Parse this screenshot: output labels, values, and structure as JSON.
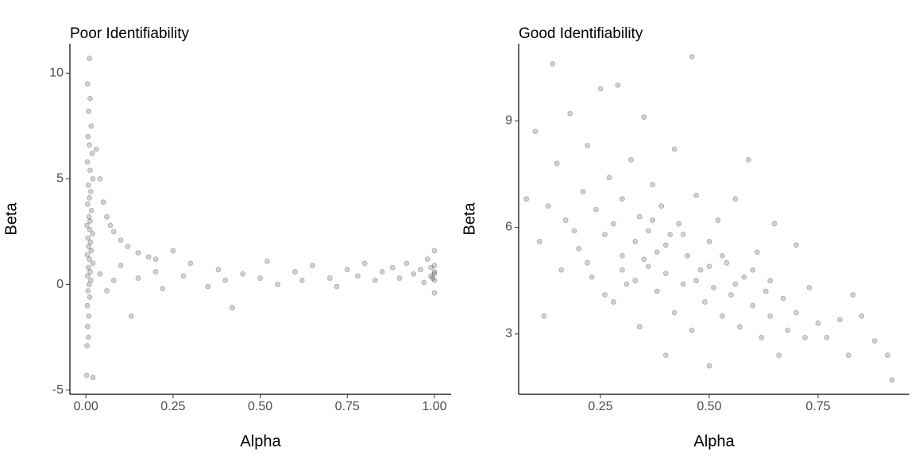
{
  "chart_data": [
    {
      "type": "scatter",
      "title": "Poor Identifiability",
      "x_label": "Alpha",
      "y_label": "Beta",
      "color": "#000000",
      "xlim": [
        -0.046,
        1.048
      ],
      "ylim": [
        -5.2,
        11.4
      ],
      "xticks": [
        {
          "value": 0,
          "label": "0.00"
        },
        {
          "value": 0.25,
          "label": "0.25"
        },
        {
          "value": 0.5,
          "label": "0.50"
        },
        {
          "value": 0.75,
          "label": "0.75"
        },
        {
          "value": 1,
          "label": "1.00"
        }
      ],
      "yticks": [
        -5,
        0,
        5,
        10
      ],
      "x": [
        0.01,
        0.005,
        0.012,
        0.008,
        0.015,
        0.006,
        0.01,
        0.018,
        0.004,
        0.012,
        0.02,
        0.007,
        0.014,
        0.01,
        0.005,
        0.016,
        0.009,
        0.012,
        0.003,
        0.011,
        0.019,
        0.006,
        0.013,
        0.008,
        0.015,
        0.004,
        0.01,
        0.02,
        0.007,
        0.012,
        0.005,
        0.014,
        0.009,
        0.006,
        0.011,
        0.004,
        0.008,
        0.005,
        0.007,
        0.003,
        0.002,
        0.02,
        0.03,
        0.04,
        0.05,
        0.06,
        0.07,
        0.08,
        0.1,
        0.12,
        0.15,
        0.18,
        0.2,
        0.25,
        0.04,
        0.06,
        0.08,
        0.1,
        0.13,
        0.15,
        0.2,
        0.22,
        0.28,
        0.3,
        0.35,
        0.38,
        0.4,
        0.42,
        0.45,
        0.5,
        0.52,
        0.55,
        0.6,
        0.62,
        0.65,
        0.7,
        0.72,
        0.75,
        0.78,
        0.8,
        0.83,
        0.85,
        0.88,
        0.9,
        0.92,
        0.94,
        0.96,
        0.97,
        0.98,
        0.99,
        1,
        1,
        1,
        1,
        1,
        0.99,
        0.995,
        1
      ],
      "values": [
        10.7,
        9.5,
        8.8,
        8.2,
        7.5,
        7,
        6.6,
        6.2,
        5.8,
        5.4,
        5,
        4.7,
        4.4,
        4.1,
        3.8,
        3.5,
        3.2,
        3,
        2.8,
        2.6,
        2.4,
        2.2,
        2,
        1.8,
        1.6,
        1.4,
        1.2,
        1,
        0.8,
        0.6,
        0.4,
        0.2,
        0,
        -0.3,
        -0.6,
        -1,
        -1.5,
        -2,
        -2.5,
        -2.9,
        -4.3,
        -4.4,
        6.4,
        5,
        3.9,
        3.2,
        2.8,
        2.5,
        2.1,
        1.8,
        1.5,
        1.3,
        1.2,
        1.6,
        0.5,
        -0.3,
        0.2,
        0.9,
        -1.5,
        0.3,
        0.6,
        -0.2,
        0.4,
        1,
        -0.1,
        0.7,
        0.2,
        -1.1,
        0.5,
        0.3,
        1.1,
        0,
        0.6,
        0.2,
        0.9,
        0.3,
        -0.1,
        0.7,
        0.4,
        1,
        0.2,
        0.6,
        0.8,
        0.3,
        1,
        0.5,
        0.7,
        0.1,
        1.2,
        0.4,
        0.6,
        0.9,
        0.2,
        -0.4,
        1.6,
        0.8,
        0.3,
        0.5
      ]
    },
    {
      "type": "scatter",
      "title": "Good Identifiability",
      "x_label": "Alpha",
      "y_label": "Beta",
      "color": "#000000",
      "xlim": [
        0.062,
        0.96
      ],
      "ylim": [
        1.3,
        11.17
      ],
      "xticks": [
        {
          "value": 0.25,
          "label": "0.25"
        },
        {
          "value": 0.5,
          "label": "0.50"
        },
        {
          "value": 0.75,
          "label": "0.75"
        }
      ],
      "yticks": [
        3,
        6,
        9
      ],
      "x": [
        0.1,
        0.12,
        0.14,
        0.15,
        0.17,
        0.18,
        0.2,
        0.21,
        0.22,
        0.23,
        0.24,
        0.25,
        0.26,
        0.27,
        0.28,
        0.28,
        0.29,
        0.3,
        0.3,
        0.31,
        0.32,
        0.33,
        0.34,
        0.34,
        0.35,
        0.36,
        0.36,
        0.37,
        0.38,
        0.38,
        0.39,
        0.4,
        0.4,
        0.41,
        0.42,
        0.42,
        0.43,
        0.44,
        0.45,
        0.46,
        0.46,
        0.47,
        0.48,
        0.49,
        0.5,
        0.5,
        0.51,
        0.52,
        0.53,
        0.54,
        0.55,
        0.56,
        0.57,
        0.58,
        0.59,
        0.6,
        0.61,
        0.62,
        0.63,
        0.64,
        0.65,
        0.66,
        0.67,
        0.68,
        0.7,
        0.7,
        0.72,
        0.73,
        0.75,
        0.77,
        0.8,
        0.82,
        0.83,
        0.85,
        0.88,
        0.91,
        0.92,
        0.08,
        0.11,
        0.13,
        0.16,
        0.19,
        0.22,
        0.26,
        0.3,
        0.33,
        0.35,
        0.37,
        0.4,
        0.44,
        0.47,
        0.5,
        0.53,
        0.56,
        0.6,
        0.64
      ],
      "values": [
        8.7,
        3.5,
        10.6,
        7.8,
        6.2,
        9.2,
        5.4,
        7,
        8.3,
        4.6,
        6.5,
        9.9,
        5.8,
        7.4,
        3.9,
        6.1,
        10,
        5.2,
        6.8,
        4.4,
        7.9,
        5.6,
        3.2,
        6.3,
        9.1,
        4.9,
        5.9,
        7.2,
        4.2,
        5.3,
        6.6,
        2.4,
        4.7,
        5.8,
        8.2,
        3.6,
        6.1,
        4.4,
        5.2,
        10.8,
        3.1,
        6.9,
        4.8,
        3.9,
        5.6,
        2.1,
        4.3,
        6.2,
        3.5,
        5,
        4.1,
        6.8,
        3.2,
        4.6,
        7.9,
        3.8,
        5.3,
        2.9,
        4.2,
        3.5,
        6.1,
        2.4,
        4,
        3.1,
        5.5,
        3.6,
        2.9,
        4.3,
        3.3,
        2.9,
        3.4,
        2.4,
        4.1,
        3.5,
        2.8,
        2.4,
        1.7,
        6.8,
        5.6,
        6.6,
        4.8,
        5.9,
        5,
        4.1,
        4.8,
        4.5,
        5.1,
        6.2,
        5.5,
        5.8,
        4.5,
        4.9,
        5.2,
        4.4,
        4.8,
        4.5
      ]
    }
  ]
}
